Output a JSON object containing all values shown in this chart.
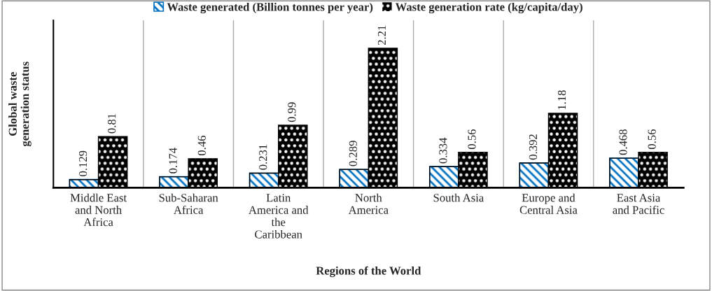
{
  "chart_data": {
    "type": "bar",
    "categories": [
      "Middle East\nand North\nAfrica",
      "Sub-Saharan\nAfrica",
      "Latin\nAmerica and\nthe\nCaribbean",
      "North\nAmerica",
      "South Asia",
      "Europe and\nCentral Asia",
      "East Asia\nand Pacific"
    ],
    "series": [
      {
        "name": "Waste generated (Billion tonnes per year)",
        "color": "#0070c0",
        "values": [
          0.129,
          0.174,
          0.231,
          0.289,
          0.334,
          0.392,
          0.468
        ]
      },
      {
        "name": "Waste generation rate (kg/capita/day)",
        "color": "#000000",
        "values": [
          0.81,
          0.46,
          0.99,
          2.21,
          0.56,
          1.18,
          0.56
        ]
      }
    ],
    "xlabel": "Regions of the World",
    "ylabel": "Global waste\ngeneration status",
    "data_labels": true,
    "legend": "top",
    "grid": "x"
  }
}
